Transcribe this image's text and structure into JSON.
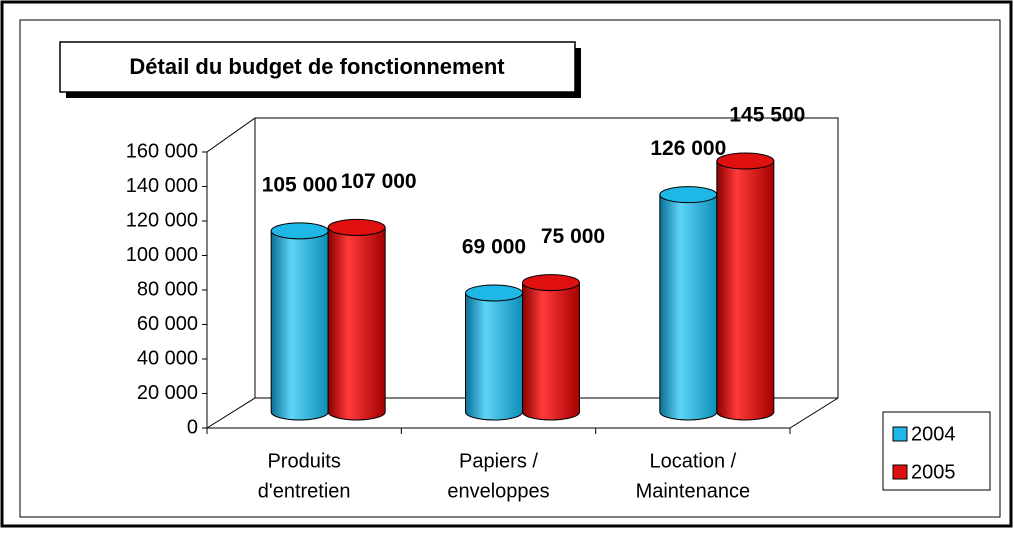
{
  "chart_data": {
    "type": "bar3d",
    "title": "Détail du budget de fonctionnement",
    "categories": [
      [
        "Produits",
        "d'entretien"
      ],
      [
        "Papiers /",
        "enveloppes"
      ],
      [
        "Location /",
        "Maintenance"
      ]
    ],
    "series": [
      {
        "name": "2004",
        "color": "#1fb8e6",
        "values": [
          105000,
          69000,
          126000
        ],
        "value_labels": [
          "105 000",
          "69 000",
          "126 000"
        ]
      },
      {
        "name": "2005",
        "color": "#e01010",
        "values": [
          107000,
          75000,
          145500
        ],
        "value_labels": [
          "107 000",
          "75 000",
          "145 500"
        ]
      }
    ],
    "ylim": [
      0,
      160000
    ],
    "yticks": [
      0,
      {
        "value": 20000,
        "label": "20 000"
      },
      {
        "value": 40000,
        "label": "40 000"
      },
      {
        "value": 60000,
        "label": "60 000"
      },
      {
        "value": 80000,
        "label": "80 000"
      },
      {
        "value": 100000,
        "label": "100 000"
      },
      {
        "value": 120000,
        "label": "120 000"
      },
      {
        "value": 140000,
        "label": "140 000"
      },
      {
        "value": 160000,
        "label": "160 000"
      }
    ],
    "legend": "right"
  }
}
